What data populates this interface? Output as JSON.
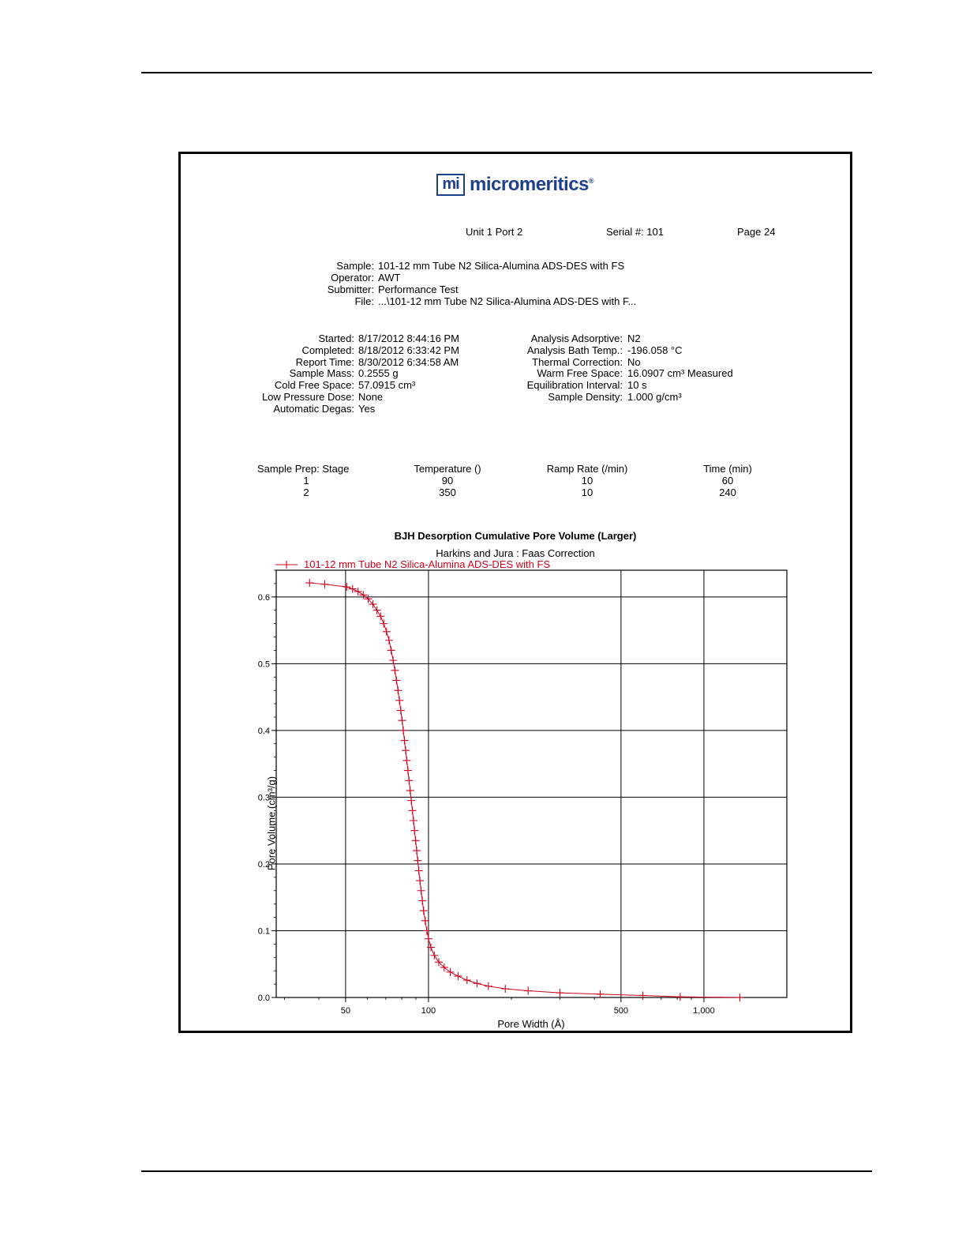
{
  "brand": {
    "logo_mark": "mi",
    "logo_text": "micromeritics",
    "logo_reg": "®"
  },
  "header": {
    "unit_port": "Unit 1 Port 2",
    "serial": "Serial #: 101",
    "page": "Page 24"
  },
  "sample_info": [
    {
      "label": "Sample:",
      "value": "101-12 mm Tube N2 Silica-Alumina ADS-DES with FS"
    },
    {
      "label": "Operator:",
      "value": "AWT"
    },
    {
      "label": "Submitter:",
      "value": "Performance Test"
    },
    {
      "label": "File:",
      "value": "...\\101-12 mm Tube N2 Silica-Alumina ADS-DES with F..."
    }
  ],
  "run_left": [
    {
      "label": "Started:",
      "value": "8/17/2012 8:44:16 PM"
    },
    {
      "label": "Completed:",
      "value": "8/18/2012 6:33:42 PM"
    },
    {
      "label": "Report Time:",
      "value": "8/30/2012 6:34:58 AM"
    },
    {
      "label": "Sample Mass:",
      "value": "0.2555 g"
    },
    {
      "label": "Cold Free Space:",
      "value": "57.0915 cm³"
    },
    {
      "label": "Low Pressure Dose:",
      "value": "None"
    },
    {
      "label": "Automatic Degas:",
      "value": "Yes"
    }
  ],
  "run_right": [
    {
      "label": "Analysis Adsorptive:",
      "value": "N2"
    },
    {
      "label": "Analysis Bath Temp.:",
      "value": "-196.058 °C"
    },
    {
      "label": "Thermal Correction:",
      "value": "No"
    },
    {
      "label": "Warm Free Space:",
      "value": "16.0907 cm³ Measured"
    },
    {
      "label": "Equilibration Interval:",
      "value": "10 s"
    },
    {
      "label": "Sample Density:",
      "value": "1.000 g/cm³"
    }
  ],
  "prep": {
    "headers": [
      "Sample Prep:  Stage",
      "Temperature ()",
      "Ramp Rate (/min)",
      "Time (min)"
    ],
    "rows": [
      [
        "1",
        "90",
        "10",
        "60"
      ],
      [
        "2",
        "350",
        "10",
        "240"
      ]
    ]
  },
  "colors": {
    "series": "#d0021b",
    "brand": "#1f3f8f"
  },
  "chart_data": {
    "type": "line",
    "title": "BJH Desorption Cumulative Pore Volume (Larger)",
    "subtitle": "Harkins and Jura : Faas Correction",
    "xlabel": "Pore Width (Å)",
    "ylabel": "Pore Volume (cm³/g)",
    "x_scale": "log",
    "xlim": [
      28,
      2000
    ],
    "ylim": [
      0,
      0.64
    ],
    "x_ticks": [
      {
        "value": 50,
        "label": "50"
      },
      {
        "value": 100,
        "label": "100"
      },
      {
        "value": 500,
        "label": "500"
      },
      {
        "value": 1000,
        "label": "1,000"
      }
    ],
    "y_ticks": [
      {
        "value": 0,
        "label": "0.0"
      },
      {
        "value": 0.1,
        "label": "0.1"
      },
      {
        "value": 0.2,
        "label": "0.2"
      },
      {
        "value": 0.3,
        "label": "0.3"
      },
      {
        "value": 0.4,
        "label": "0.4"
      },
      {
        "value": 0.5,
        "label": "0.5"
      },
      {
        "value": 0.6,
        "label": "0.6"
      }
    ],
    "grid": true,
    "legend_position": "top-left",
    "series": [
      {
        "name": "101-12 mm Tube N2 Silica-Alumina ADS-DES with FS",
        "marker": "+",
        "points": [
          [
            1350,
            0.0
          ],
          [
            820,
            0.001
          ],
          [
            600,
            0.003
          ],
          [
            420,
            0.005
          ],
          [
            300,
            0.007
          ],
          [
            230,
            0.01
          ],
          [
            190,
            0.013
          ],
          [
            165,
            0.017
          ],
          [
            150,
            0.021
          ],
          [
            138,
            0.026
          ],
          [
            128,
            0.032
          ],
          [
            120,
            0.038
          ],
          [
            114,
            0.045
          ],
          [
            109,
            0.053
          ],
          [
            105,
            0.063
          ],
          [
            102,
            0.075
          ],
          [
            100,
            0.088
          ],
          [
            98.6,
            0.1
          ],
          [
            97.3,
            0.115
          ],
          [
            96.0,
            0.13
          ],
          [
            95.0,
            0.145
          ],
          [
            94.0,
            0.16
          ],
          [
            93.1,
            0.175
          ],
          [
            92.2,
            0.19
          ],
          [
            91.4,
            0.205
          ],
          [
            90.6,
            0.22
          ],
          [
            89.8,
            0.235
          ],
          [
            89.0,
            0.25
          ],
          [
            88.2,
            0.265
          ],
          [
            87.4,
            0.28
          ],
          [
            86.6,
            0.295
          ],
          [
            85.8,
            0.31
          ],
          [
            85.0,
            0.325
          ],
          [
            84.2,
            0.34
          ],
          [
            83.4,
            0.355
          ],
          [
            82.6,
            0.37
          ],
          [
            81.8,
            0.385
          ],
          [
            81.0,
            0.4
          ],
          [
            80.2,
            0.415
          ],
          [
            79.3,
            0.43
          ],
          [
            78.4,
            0.445
          ],
          [
            77.5,
            0.46
          ],
          [
            76.5,
            0.475
          ],
          [
            75.5,
            0.49
          ],
          [
            74.4,
            0.505
          ],
          [
            73.2,
            0.52
          ],
          [
            71.9,
            0.535
          ],
          [
            70.4,
            0.548
          ],
          [
            68.8,
            0.56
          ],
          [
            67.0,
            0.571
          ],
          [
            65.0,
            0.58
          ],
          [
            62.8,
            0.589
          ],
          [
            60.4,
            0.597
          ],
          [
            58.0,
            0.603
          ],
          [
            55.5,
            0.608
          ],
          [
            53.0,
            0.612
          ],
          [
            50.5,
            0.615
          ],
          [
            42.0,
            0.619
          ],
          [
            37.0,
            0.621
          ]
        ]
      }
    ]
  }
}
